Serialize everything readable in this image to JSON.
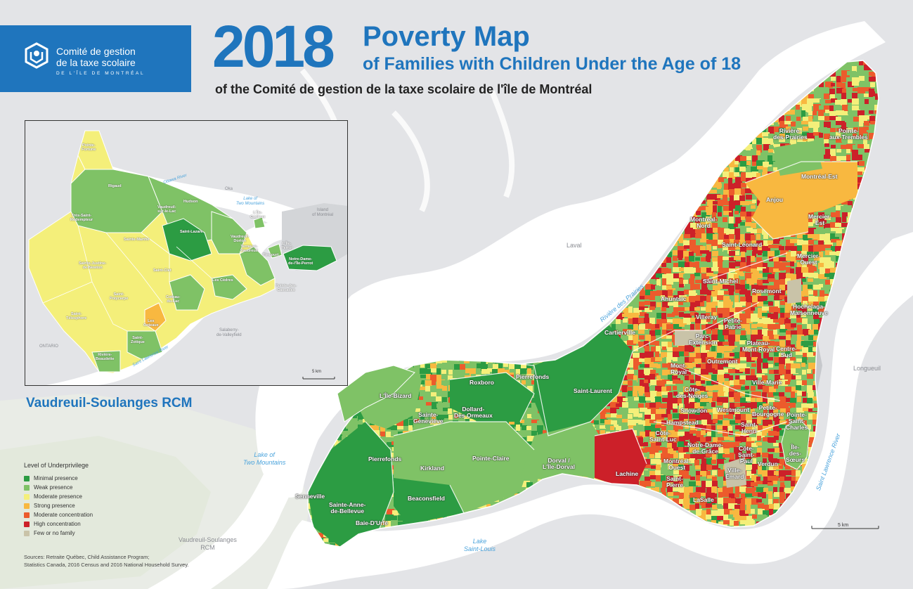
{
  "header": {
    "logo_line1": "Comité de gestion",
    "logo_line2": "de la taxe scolaire",
    "logo_line3": "DE L'ÎLE DE MONTRÉAL",
    "year": "2018",
    "title": "Poverty Map",
    "subtitle": "of Families with Children Under the Age of 18",
    "organization": "of the Comité de gestion de la taxe scolaire de l'île de Montréal"
  },
  "inset": {
    "title": "Vaudreuil-Soulanges RCM",
    "scale": "5 km",
    "labels": [
      {
        "id": "pointe-fortune",
        "text": "Pointe-\nFortune"
      },
      {
        "id": "rigaud",
        "text": "Rigaud"
      },
      {
        "id": "tres-saint-redempteur",
        "text": "Très-Saint-\nRédempteur"
      },
      {
        "id": "vaudreuil-sur-le-lac",
        "text": "Vaudreuil-\nsur-le-Lac"
      },
      {
        "id": "hudson",
        "text": "Hudson"
      },
      {
        "id": "saint-lazare",
        "text": "Saint-Lazare"
      },
      {
        "id": "sainte-marthe",
        "text": "Sainte-Marthe"
      },
      {
        "id": "sainte-justine",
        "text": "Sainte-Justine-\nde-Newton"
      },
      {
        "id": "saint-clet",
        "text": "Saint-Clet"
      },
      {
        "id": "les-cedres",
        "text": "Les Cèdres"
      },
      {
        "id": "saint-polycarpe",
        "text": "Saint-\nPolycarpe"
      },
      {
        "id": "saint-telesphore",
        "text": "Saint-\nTélesphore"
      },
      {
        "id": "coteau-du-lac",
        "text": "Coteau-\ndu-Lac"
      },
      {
        "id": "les-coteaux",
        "text": "Les\nCoteaux"
      },
      {
        "id": "saint-zotique",
        "text": "Saint-\nZotique"
      },
      {
        "id": "riviere-beaudette",
        "text": "Rivière-\nBeaudette"
      },
      {
        "id": "pointe-des-cascades",
        "text": "Pointe-des-\nCascades"
      },
      {
        "id": "vaudreuil-dorion",
        "text": "Vaudreuil-\nDorion"
      },
      {
        "id": "lile-cadieux",
        "text": "L'Île-\nCadieux"
      },
      {
        "id": "terrasse-vaudreuil",
        "text": "Terrasse-\nVaudreuil"
      },
      {
        "id": "lile-perrot",
        "text": "L'Île-\nPerrot"
      },
      {
        "id": "notre-dame",
        "text": "Notre-Dame-\nde-l'Île-Perrot"
      },
      {
        "id": "pincourt",
        "text": "Pincourt"
      }
    ],
    "water_labels": [
      {
        "id": "ottawa-river",
        "text": "Ottawa River"
      },
      {
        "id": "lake-two-mountains",
        "text": "Lake of\nTwo Mountains"
      },
      {
        "id": "saint-lawrence",
        "text": "Saint Lawrence River"
      }
    ],
    "gray_labels": [
      {
        "id": "oka",
        "text": "Oka"
      },
      {
        "id": "island-montreal",
        "text": "Island\nof Montréal"
      },
      {
        "id": "salaberry",
        "text": "Salaberry-\nde-Valleyfield"
      },
      {
        "id": "ontario",
        "text": "ONTARIO"
      }
    ]
  },
  "legend": {
    "title": "Level of Underprivilege",
    "items": [
      {
        "label": "Minimal presence",
        "color": "#2c9c43"
      },
      {
        "label": "Weak presence",
        "color": "#7fc266"
      },
      {
        "label": "Moderate presence",
        "color": "#f4ef7a"
      },
      {
        "label": "Strong presence",
        "color": "#f8b840"
      },
      {
        "label": "Moderate concentration",
        "color": "#ec5b2c"
      },
      {
        "label": "High concentration",
        "color": "#cc2029"
      },
      {
        "label": "Few or no family",
        "color": "#c9c3a8"
      }
    ]
  },
  "sources": {
    "line1": "Sources: Retraite Québec, Child Assistance Program;",
    "line2": "Statistics Canada, 2016 Census and 2016 National Household Survey."
  },
  "main_map": {
    "scale": "5 km",
    "water_labels": [
      {
        "id": "riviere-des-prairies",
        "text": "Rivière des Prairies"
      },
      {
        "id": "lake-two-mountains",
        "text": "Lake of\nTwo Mountains"
      },
      {
        "id": "lake-saint-louis",
        "text": "Lake\nSaint-Louis"
      },
      {
        "id": "saint-lawrence-river",
        "text": "Saint Lawrence River"
      }
    ],
    "gray_labels": [
      {
        "id": "laval",
        "text": "Laval"
      },
      {
        "id": "longueuil",
        "text": "Longueuil"
      },
      {
        "id": "vaudreuil-soulanges",
        "text": "Vaudreuil-Soulanges\nRCM"
      }
    ],
    "district_labels": [
      {
        "id": "riviere-des-prairies-d",
        "text": "Rivière-\ndes-Prairies"
      },
      {
        "id": "pointe-aux-trembles",
        "text": "Pointe-\naux-Trembles"
      },
      {
        "id": "montreal-est",
        "text": "Montréal-Est"
      },
      {
        "id": "anjou",
        "text": "Anjou"
      },
      {
        "id": "montreal-nord",
        "text": "Montréal-\nNord"
      },
      {
        "id": "mercier-est",
        "text": "Mercier-\nEst"
      },
      {
        "id": "saint-leonard",
        "text": "Saint-Léonard"
      },
      {
        "id": "mercier-ouest",
        "text": "Mercier-\nOuest"
      },
      {
        "id": "saint-michel",
        "text": "Saint-Michel"
      },
      {
        "id": "rosemont",
        "text": "Rosemont"
      },
      {
        "id": "ahuntsic",
        "text": "Ahuntsic"
      },
      {
        "id": "hochelaga",
        "text": "Hochelaga-\nMaisonneuve"
      },
      {
        "id": "villeray",
        "text": "Villeray"
      },
      {
        "id": "petite-patrie",
        "text": "Petite-\nPatrie"
      },
      {
        "id": "cartierville",
        "text": "Cartierville"
      },
      {
        "id": "parc-extension",
        "text": "Parc-\nExtension"
      },
      {
        "id": "plateau",
        "text": "Plateau-\nMont-Royal"
      },
      {
        "id": "centre-sud",
        "text": "Centre-\nSud"
      },
      {
        "id": "outremont",
        "text": "Outremont"
      },
      {
        "id": "mont-royal",
        "text": "Mont-\nRoyal"
      },
      {
        "id": "ville-marie",
        "text": "Ville-Marie"
      },
      {
        "id": "cote-des-neiges",
        "text": "Côte-\ndes-Neiges"
      },
      {
        "id": "snowdon",
        "text": "Snowdon"
      },
      {
        "id": "westmount",
        "text": "Westmount"
      },
      {
        "id": "petite-bourgogne",
        "text": "Petite-\nBourgogne"
      },
      {
        "id": "pointe-saint-charles",
        "text": "Pointe-\nSaint-\nCharles"
      },
      {
        "id": "saint-laurent",
        "text": "Saint-Laurent"
      },
      {
        "id": "hampstead",
        "text": "Hampstead"
      },
      {
        "id": "saint-henri",
        "text": "Saint-\nHenri"
      },
      {
        "id": "cote-saint-luc",
        "text": "Côte-\nSaint-Luc"
      },
      {
        "id": "notre-dame-de-grace",
        "text": "Notre-Dame-\nde-Grâce"
      },
      {
        "id": "ile-des-soeurs",
        "text": "Île-\ndes-\nSœurs"
      },
      {
        "id": "cote-saint-paul",
        "text": "Côte-\nSaint-\nPaul"
      },
      {
        "id": "montreal-ouest",
        "text": "Montréal-\nOuest"
      },
      {
        "id": "verdun",
        "text": "Verdun"
      },
      {
        "id": "ville-emard",
        "text": "Ville-\nÉmard"
      },
      {
        "id": "saint-pierre",
        "text": "Saint-\nPierre"
      },
      {
        "id": "lachine",
        "text": "Lachine"
      },
      {
        "id": "lasalle",
        "text": "LaSalle"
      },
      {
        "id": "dorval",
        "text": "Dorval /\nL'Île-Dorval"
      },
      {
        "id": "pierrefonds-n",
        "text": "Pierrefonds"
      },
      {
        "id": "roxboro",
        "text": "Roxboro"
      },
      {
        "id": "dollard",
        "text": "Dollard-\nDes Ormeaux"
      },
      {
        "id": "lile-bizard",
        "text": "L'Île-Bizard"
      },
      {
        "id": "sainte-genevieve",
        "text": "Sainte-\nGeneviève"
      },
      {
        "id": "pierrefonds-s",
        "text": "Pierrefonds"
      },
      {
        "id": "kirkland",
        "text": "Kirkland"
      },
      {
        "id": "pointe-claire",
        "text": "Pointe-Claire"
      },
      {
        "id": "senneville",
        "text": "Senneville"
      },
      {
        "id": "sainte-anne",
        "text": "Sainte-Anne-\nde-Bellevue"
      },
      {
        "id": "beaconsfield",
        "text": "Beaconsfield"
      },
      {
        "id": "baie-durfe",
        "text": "Baie-D'Urfé"
      }
    ]
  }
}
